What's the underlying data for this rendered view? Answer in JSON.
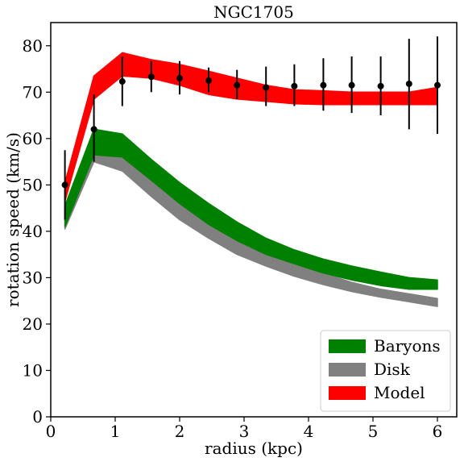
{
  "chart_data": {
    "type": "line",
    "title": "NGC1705",
    "xlabel": "radius (kpc)",
    "ylabel": "rotation speed (km/s)",
    "xlim": [
      0,
      6.3
    ],
    "ylim": [
      0,
      85
    ],
    "x_ticks": [
      0,
      1,
      2,
      3,
      4,
      5,
      6
    ],
    "y_ticks": [
      0,
      10,
      20,
      30,
      40,
      50,
      60,
      70,
      80
    ],
    "grid": false,
    "legend_position": "lower-right",
    "x": [
      0.22,
      0.67,
      1.11,
      1.56,
      2.0,
      2.45,
      2.89,
      3.34,
      3.78,
      4.23,
      4.67,
      5.12,
      5.56,
      6.0
    ],
    "bands": [
      {
        "name": "Model",
        "color": "#ff0000",
        "upper": [
          50.5,
          73.5,
          78.5,
          77.0,
          76.0,
          74.5,
          73.0,
          71.5,
          70.5,
          70.3,
          70.0,
          70.0,
          70.0,
          71.0
        ],
        "lower": [
          46.5,
          68.5,
          73.5,
          73.0,
          71.5,
          69.5,
          68.5,
          68.0,
          67.5,
          67.3,
          67.3,
          67.3,
          67.3,
          67.3
        ]
      },
      {
        "name": "Disk",
        "color": "#808080",
        "upper": [
          45.0,
          60.5,
          59.5,
          54.0,
          48.0,
          43.0,
          39.0,
          35.5,
          33.0,
          31.0,
          29.0,
          27.5,
          26.5,
          25.5
        ],
        "lower": [
          40.5,
          55.0,
          53.0,
          47.5,
          42.5,
          38.5,
          35.0,
          32.5,
          30.3,
          28.5,
          27.0,
          25.8,
          24.8,
          23.8
        ]
      },
      {
        "name": "Baryons",
        "color": "#008000",
        "upper": [
          45.5,
          62.0,
          61.0,
          55.5,
          50.5,
          46.0,
          42.0,
          38.5,
          36.0,
          34.0,
          32.5,
          31.2,
          30.0,
          29.5
        ],
        "lower": [
          41.0,
          56.5,
          56.0,
          51.0,
          46.0,
          41.5,
          38.0,
          35.0,
          33.0,
          31.0,
          29.5,
          28.3,
          27.5,
          27.5
        ]
      }
    ],
    "observed": {
      "x": [
        0.22,
        0.67,
        1.11,
        1.56,
        2.0,
        2.45,
        2.89,
        3.34,
        3.78,
        4.23,
        4.67,
        5.12,
        5.56,
        6.0
      ],
      "y": [
        50.0,
        62.0,
        72.3,
        73.3,
        73.0,
        72.5,
        71.5,
        71.0,
        71.3,
        71.5,
        71.5,
        71.3,
        71.8,
        71.5
      ],
      "err_low": [
        42.5,
        55.0,
        67.0,
        70.0,
        69.5,
        70.0,
        68.5,
        67.0,
        67.0,
        66.0,
        65.5,
        65.0,
        62.0,
        61.0
      ],
      "err_high": [
        57.5,
        69.5,
        77.7,
        76.7,
        76.7,
        75.3,
        74.8,
        75.5,
        76.0,
        77.3,
        77.7,
        77.7,
        81.5,
        82.0
      ],
      "color": "#000000"
    },
    "legend": [
      {
        "label": "Baryons",
        "color": "#008000"
      },
      {
        "label": "Disk",
        "color": "#808080"
      },
      {
        "label": "Model",
        "color": "#ff0000"
      }
    ]
  }
}
